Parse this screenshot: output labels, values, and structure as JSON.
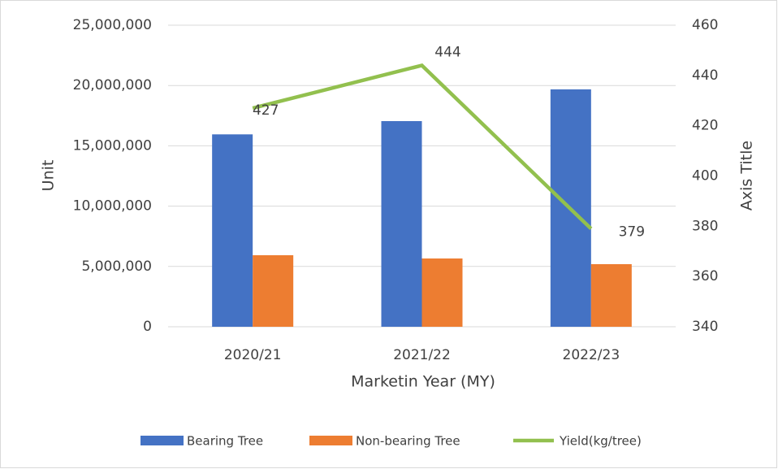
{
  "chart_data": {
    "type": "bar-line",
    "x_label": "Marketin Year (MY)",
    "y_label": "Unit",
    "y2_label": "Axis Title",
    "categories": [
      "2020/21",
      "2021/22",
      "2022/23"
    ],
    "series": [
      {
        "name": "Bearing Tree",
        "type": "bar",
        "color": "#4472c4",
        "values": [
          15950000,
          17050000,
          19680000
        ]
      },
      {
        "name": "Non-bearing Tree",
        "type": "bar",
        "color": "#ed7d31",
        "values": [
          5930000,
          5660000,
          5190000
        ]
      },
      {
        "name": "Yield(kg/tree)",
        "type": "line",
        "axis": "y2",
        "color": "#92c04e",
        "values": [
          427,
          444,
          379
        ]
      }
    ],
    "ylim": [
      0,
      25000000
    ],
    "yticks": [
      0,
      {
        "value": 5000000,
        "label": "5,000,000"
      },
      {
        "value": 10000000,
        "label": "10,000,000"
      },
      {
        "value": 15000000,
        "label": "15,000,000"
      },
      {
        "value": 20000000,
        "label": "20,000,000"
      },
      {
        "value": 25000000,
        "label": "25,000,000"
      }
    ],
    "y2lim": [
      340,
      460
    ],
    "y2ticks": [
      340,
      360,
      380,
      400,
      420,
      440,
      460
    ],
    "grid": true,
    "legend": "bottom"
  }
}
